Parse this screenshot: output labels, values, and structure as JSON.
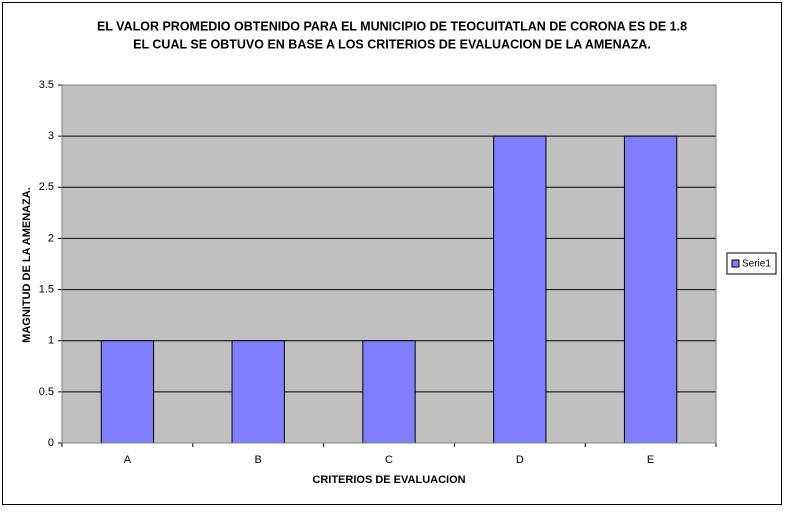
{
  "chart_data": {
    "type": "bar",
    "title": [
      "EL VALOR PROMEDIO OBTENIDO PARA EL MUNICIPIO DE TEOCUITATLAN DE CORONA ES DE 1.8",
      "EL CUAL SE OBTUVO EN BASE A LOS CRITERIOS DE EVALUACION DE LA AMENAZA."
    ],
    "x_label": "CRITERIOS DE EVALUACION",
    "y_label": "MAGNITUD DE LA AMENAZA.",
    "categories": [
      "A",
      "B",
      "C",
      "D",
      "E"
    ],
    "series": [
      {
        "name": "Serie1",
        "color": "#8080ff",
        "values": [
          1,
          1,
          1,
          3,
          3
        ]
      }
    ],
    "ylim": [
      0,
      3.5
    ],
    "yticks": [
      0,
      0.5,
      1,
      1.5,
      2,
      2.5,
      3,
      3.5
    ],
    "grid": true,
    "legend": "right"
  }
}
